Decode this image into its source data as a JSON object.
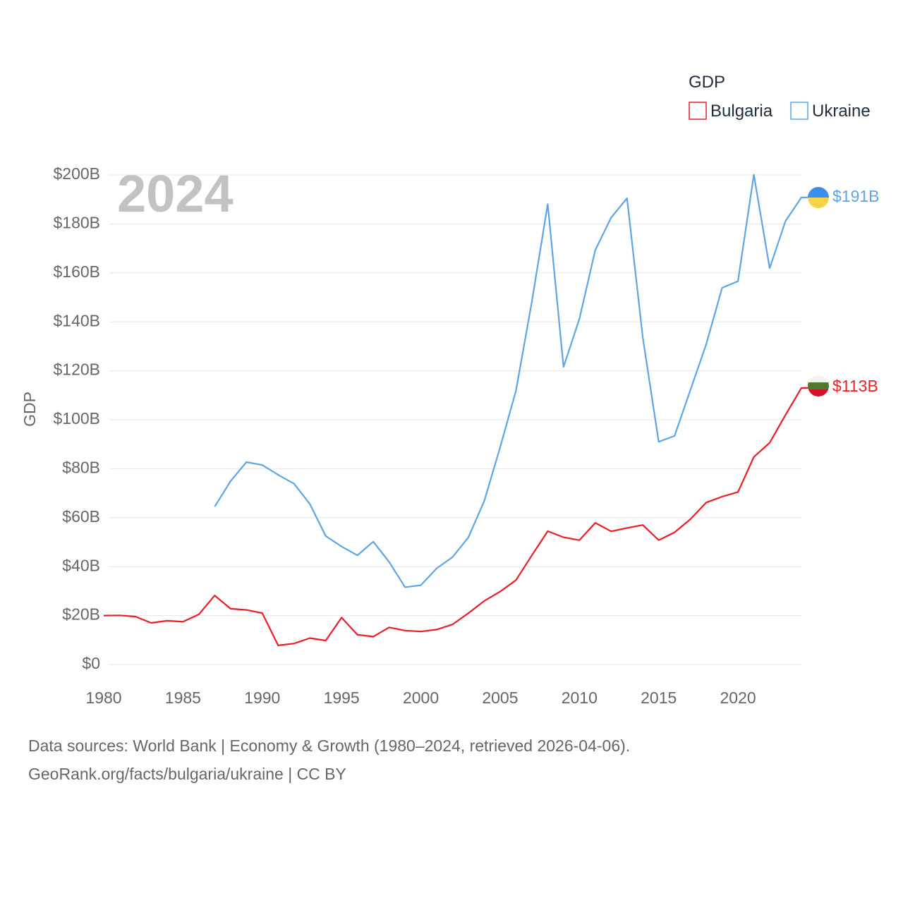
{
  "chart_data": {
    "type": "line",
    "title": "GDP",
    "ylabel": "GDP",
    "xlabel": "",
    "year_label": "2024",
    "xlim": [
      1980,
      2024
    ],
    "ylim": [
      0,
      200
    ],
    "x_ticks": [
      1980,
      1985,
      1990,
      1995,
      2000,
      2005,
      2010,
      2015,
      2020
    ],
    "y_ticks": [
      0,
      20,
      40,
      60,
      80,
      100,
      120,
      140,
      160,
      180,
      200
    ],
    "y_tick_labels": [
      "$0",
      "$20B",
      "$40B",
      "$60B",
      "$80B",
      "$100B",
      "$120B",
      "$140B",
      "$160B",
      "$180B",
      "$200B"
    ],
    "grid": true,
    "legend_position": "top-right",
    "series": [
      {
        "name": "Bulgaria",
        "color": "#ee1c25",
        "end_label": "$113B",
        "x": [
          1980,
          1981,
          1982,
          1983,
          1984,
          1985,
          1986,
          1987,
          1988,
          1989,
          1990,
          1991,
          1992,
          1993,
          1994,
          1995,
          1996,
          1997,
          1998,
          1999,
          2000,
          2001,
          2002,
          2003,
          2004,
          2005,
          2006,
          2007,
          2008,
          2009,
          2010,
          2011,
          2012,
          2013,
          2014,
          2015,
          2016,
          2017,
          2018,
          2019,
          2020,
          2021,
          2022,
          2023,
          2024
        ],
        "values": [
          20.0,
          20.1,
          19.6,
          17.0,
          17.9,
          17.5,
          20.5,
          28.2,
          22.8,
          22.3,
          21.0,
          7.8,
          8.6,
          10.8,
          9.8,
          19.2,
          12.2,
          11.4,
          15.2,
          13.9,
          13.5,
          14.3,
          16.4,
          21.0,
          26.0,
          29.8,
          34.5,
          44.6,
          54.5,
          52.0,
          50.8,
          57.9,
          54.4,
          55.8,
          57.0,
          50.8,
          54.0,
          59.4,
          66.2,
          68.6,
          70.5,
          84.8,
          90.6,
          102.0,
          113.0
        ]
      },
      {
        "name": "Ukraine",
        "color": "#5ea5e6",
        "end_label": "$191B",
        "x": [
          1987,
          1988,
          1989,
          1990,
          1991,
          1992,
          1993,
          1994,
          1995,
          1996,
          1997,
          1998,
          1999,
          2000,
          2001,
          2002,
          2003,
          2004,
          2005,
          2006,
          2007,
          2008,
          2009,
          2010,
          2011,
          2012,
          2013,
          2014,
          2015,
          2016,
          2017,
          2018,
          2019,
          2020,
          2021,
          2022,
          2023,
          2024
        ],
        "values": [
          64.5,
          74.9,
          82.7,
          81.5,
          77.5,
          73.9,
          65.6,
          52.5,
          48.2,
          44.6,
          50.2,
          41.9,
          31.6,
          32.4,
          39.3,
          43.9,
          52.0,
          66.9,
          88.7,
          111.9,
          148.2,
          188.1,
          121.6,
          141.2,
          169.3,
          182.6,
          190.5,
          133.5,
          91.0,
          93.4,
          112.2,
          130.9,
          153.9,
          156.6,
          200.1,
          161.9,
          181.2,
          190.8
        ]
      }
    ]
  },
  "footer": {
    "line1": "Data sources: World Bank | Economy & Growth (1980–2024, retrieved 2026-04-06).",
    "line2": "GeoRank.org/facts/bulgaria/ukraine | CC BY"
  }
}
